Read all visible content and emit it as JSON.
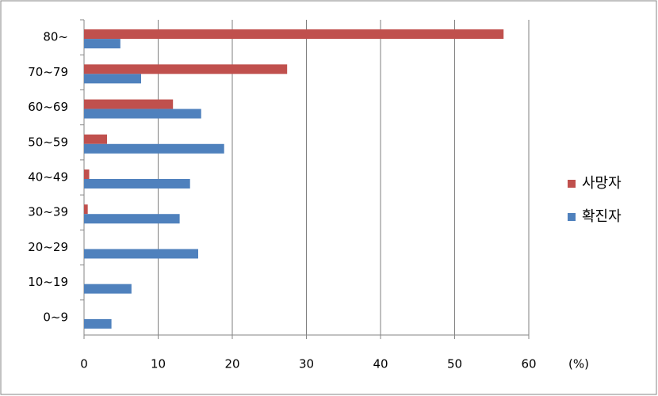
{
  "chart_data": {
    "type": "barh",
    "categories": [
      "80~",
      "70~79",
      "60~69",
      "50~59",
      "40~49",
      "30~39",
      "20~29",
      "10~19",
      "0~9"
    ],
    "series": [
      {
        "name": "사망자",
        "color": "#c0504d",
        "values": [
          56.6,
          27.4,
          12.0,
          3.1,
          0.7,
          0.5,
          0,
          0,
          0
        ]
      },
      {
        "name": "확진자",
        "color": "#4f81bd",
        "values": [
          4.9,
          7.7,
          15.8,
          18.9,
          14.3,
          12.9,
          15.4,
          6.4,
          3.7
        ]
      }
    ],
    "x_label": "(%)",
    "xlim": [
      0,
      60
    ],
    "xticks": [
      0,
      10,
      20,
      30,
      40,
      50,
      60
    ],
    "grid": true,
    "legend": "right"
  }
}
